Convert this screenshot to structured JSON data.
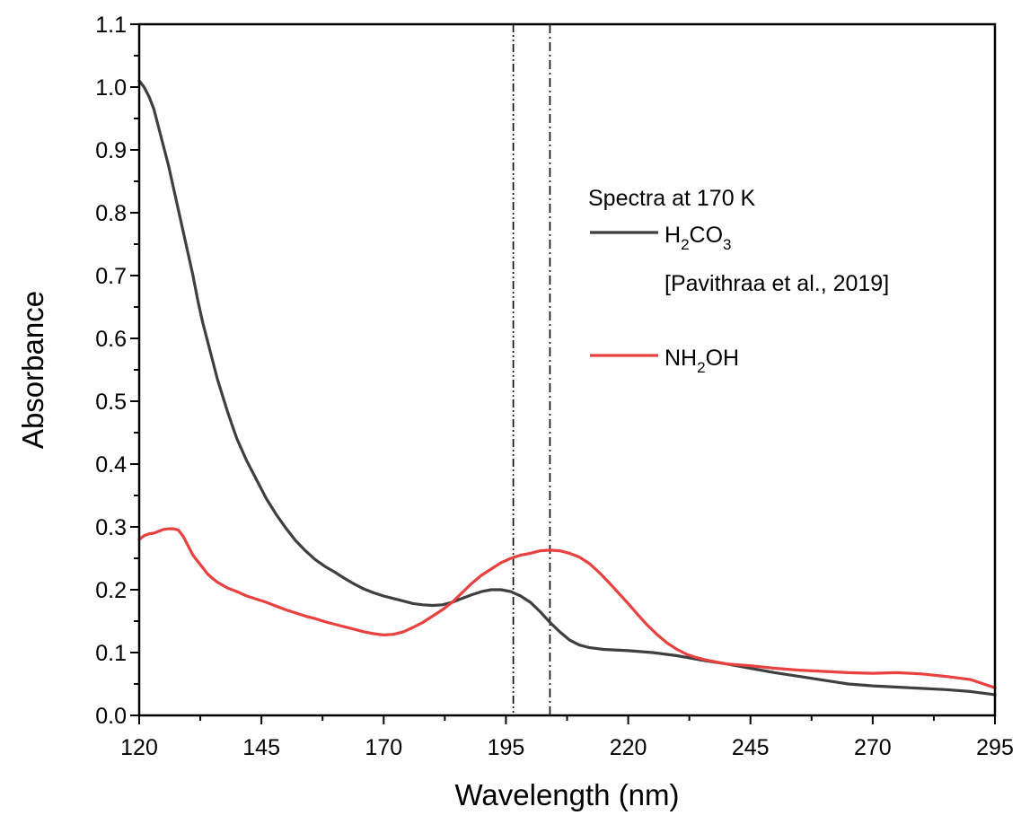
{
  "chart_data": {
    "type": "line",
    "title": "",
    "xlabel": "Wavelength (nm)",
    "ylabel": "Absorbance",
    "xlim": [
      120,
      295
    ],
    "ylim": [
      0.0,
      1.1
    ],
    "xticks": [
      120,
      145,
      170,
      195,
      220,
      245,
      270,
      295
    ],
    "yticks": [
      0.0,
      0.1,
      0.2,
      0.3,
      0.4,
      0.5,
      0.6,
      0.7,
      0.8,
      0.9,
      1.0,
      1.1
    ],
    "grid": false,
    "legend": {
      "placement": "right",
      "title": "Spectra at 170 K",
      "entries": [
        {
          "main": "H",
          "sub1": "2",
          "mid": "CO",
          "sub2": "3",
          "post": "",
          "note": "[Pavithraa et al., 2019]"
        },
        {
          "main": "NH",
          "sub1": "2",
          "mid": "OH",
          "sub2": "",
          "post": "",
          "note": ""
        }
      ]
    },
    "vlines": [
      {
        "x": 196.5,
        "style": "dash-dot-dot"
      },
      {
        "x": 204,
        "style": "dash-dot"
      }
    ],
    "series": [
      {
        "name": "H2CO3",
        "color": "#3f3f3f",
        "points": [
          [
            120,
            1.01
          ],
          [
            121,
            1.0
          ],
          [
            122,
            0.985
          ],
          [
            123,
            0.965
          ],
          [
            124,
            0.935
          ],
          [
            125,
            0.905
          ],
          [
            126,
            0.875
          ],
          [
            127,
            0.84
          ],
          [
            128,
            0.805
          ],
          [
            129,
            0.77
          ],
          [
            130,
            0.735
          ],
          [
            131,
            0.7
          ],
          [
            132,
            0.66
          ],
          [
            133,
            0.625
          ],
          [
            134,
            0.595
          ],
          [
            135,
            0.565
          ],
          [
            136,
            0.535
          ],
          [
            137,
            0.51
          ],
          [
            138,
            0.485
          ],
          [
            139,
            0.462
          ],
          [
            140,
            0.44
          ],
          [
            142,
            0.405
          ],
          [
            144,
            0.375
          ],
          [
            146,
            0.345
          ],
          [
            148,
            0.32
          ],
          [
            150,
            0.298
          ],
          [
            152,
            0.278
          ],
          [
            154,
            0.262
          ],
          [
            156,
            0.248
          ],
          [
            158,
            0.237
          ],
          [
            160,
            0.228
          ],
          [
            162,
            0.218
          ],
          [
            164,
            0.209
          ],
          [
            166,
            0.201
          ],
          [
            168,
            0.195
          ],
          [
            170,
            0.19
          ],
          [
            172,
            0.186
          ],
          [
            174,
            0.182
          ],
          [
            176,
            0.178
          ],
          [
            178,
            0.176
          ],
          [
            180,
            0.175
          ],
          [
            182,
            0.176
          ],
          [
            184,
            0.18
          ],
          [
            186,
            0.186
          ],
          [
            188,
            0.192
          ],
          [
            190,
            0.197
          ],
          [
            192,
            0.2
          ],
          [
            194,
            0.2
          ],
          [
            196,
            0.197
          ],
          [
            198,
            0.19
          ],
          [
            200,
            0.18
          ],
          [
            202,
            0.165
          ],
          [
            204,
            0.148
          ],
          [
            206,
            0.133
          ],
          [
            208,
            0.12
          ],
          [
            210,
            0.112
          ],
          [
            212,
            0.108
          ],
          [
            215,
            0.105
          ],
          [
            220,
            0.103
          ],
          [
            225,
            0.1
          ],
          [
            230,
            0.095
          ],
          [
            235,
            0.088
          ],
          [
            240,
            0.082
          ],
          [
            245,
            0.075
          ],
          [
            250,
            0.068
          ],
          [
            255,
            0.062
          ],
          [
            260,
            0.056
          ],
          [
            265,
            0.05
          ],
          [
            270,
            0.047
          ],
          [
            275,
            0.045
          ],
          [
            280,
            0.043
          ],
          [
            285,
            0.041
          ],
          [
            290,
            0.038
          ],
          [
            295,
            0.033
          ]
        ]
      },
      {
        "name": "NH2OH",
        "color": "#e8413f",
        "points": [
          [
            120,
            0.28
          ],
          [
            121,
            0.286
          ],
          [
            122,
            0.289
          ],
          [
            123,
            0.29
          ],
          [
            124,
            0.293
          ],
          [
            125,
            0.296
          ],
          [
            126,
            0.297
          ],
          [
            127,
            0.297
          ],
          [
            128,
            0.295
          ],
          [
            129,
            0.285
          ],
          [
            130,
            0.27
          ],
          [
            131,
            0.255
          ],
          [
            132,
            0.245
          ],
          [
            133,
            0.235
          ],
          [
            134,
            0.225
          ],
          [
            135,
            0.218
          ],
          [
            136,
            0.212
          ],
          [
            138,
            0.203
          ],
          [
            140,
            0.197
          ],
          [
            142,
            0.19
          ],
          [
            144,
            0.185
          ],
          [
            146,
            0.18
          ],
          [
            148,
            0.174
          ],
          [
            150,
            0.168
          ],
          [
            152,
            0.163
          ],
          [
            154,
            0.158
          ],
          [
            156,
            0.154
          ],
          [
            158,
            0.149
          ],
          [
            160,
            0.145
          ],
          [
            162,
            0.141
          ],
          [
            164,
            0.137
          ],
          [
            166,
            0.133
          ],
          [
            168,
            0.13
          ],
          [
            170,
            0.128
          ],
          [
            172,
            0.129
          ],
          [
            174,
            0.133
          ],
          [
            176,
            0.14
          ],
          [
            178,
            0.148
          ],
          [
            180,
            0.158
          ],
          [
            182,
            0.168
          ],
          [
            184,
            0.18
          ],
          [
            186,
            0.195
          ],
          [
            188,
            0.21
          ],
          [
            190,
            0.223
          ],
          [
            192,
            0.233
          ],
          [
            194,
            0.243
          ],
          [
            196,
            0.25
          ],
          [
            198,
            0.255
          ],
          [
            200,
            0.258
          ],
          [
            202,
            0.262
          ],
          [
            204,
            0.263
          ],
          [
            206,
            0.262
          ],
          [
            208,
            0.258
          ],
          [
            210,
            0.252
          ],
          [
            212,
            0.242
          ],
          [
            214,
            0.228
          ],
          [
            216,
            0.212
          ],
          [
            218,
            0.195
          ],
          [
            220,
            0.178
          ],
          [
            222,
            0.16
          ],
          [
            224,
            0.143
          ],
          [
            226,
            0.128
          ],
          [
            228,
            0.115
          ],
          [
            230,
            0.105
          ],
          [
            232,
            0.097
          ],
          [
            234,
            0.092
          ],
          [
            236,
            0.088
          ],
          [
            238,
            0.085
          ],
          [
            240,
            0.082
          ],
          [
            245,
            0.079
          ],
          [
            250,
            0.075
          ],
          [
            255,
            0.072
          ],
          [
            260,
            0.07
          ],
          [
            265,
            0.068
          ],
          [
            270,
            0.067
          ],
          [
            275,
            0.068
          ],
          [
            280,
            0.066
          ],
          [
            285,
            0.062
          ],
          [
            290,
            0.057
          ],
          [
            295,
            0.044
          ]
        ]
      }
    ]
  }
}
